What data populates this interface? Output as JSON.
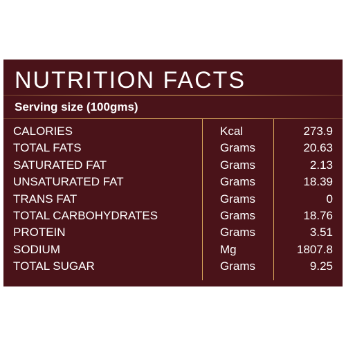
{
  "header": {
    "title": "NUTRITION FACTS",
    "serving": "Serving size (100gms)"
  },
  "rows": [
    {
      "name": "CALORIES",
      "unit": "Kcal",
      "value": "273.9"
    },
    {
      "name": "TOTAL FATS",
      "unit": "Grams",
      "value": "20.63"
    },
    {
      "name": "SATURATED FAT",
      "unit": "Grams",
      "value": "2.13"
    },
    {
      "name": "UNSATURATED FAT",
      "unit": "Grams",
      "value": "18.39"
    },
    {
      "name": "TRANS FAT",
      "unit": "Grams",
      "value": "0"
    },
    {
      "name": "TOTAL CARBOHYDRATES",
      "unit": "Grams",
      "value": "18.76"
    },
    {
      "name": "PROTEIN",
      "unit": "Grams",
      "value": "3.51"
    },
    {
      "name": "SODIUM",
      "unit": "Mg",
      "value": "1807.8"
    },
    {
      "name": "TOTAL SUGAR",
      "unit": "Grams",
      "value": "9.25"
    }
  ],
  "colors": {
    "background": "#4a1319",
    "accent": "#d9a75c",
    "text": "#ffffff"
  }
}
